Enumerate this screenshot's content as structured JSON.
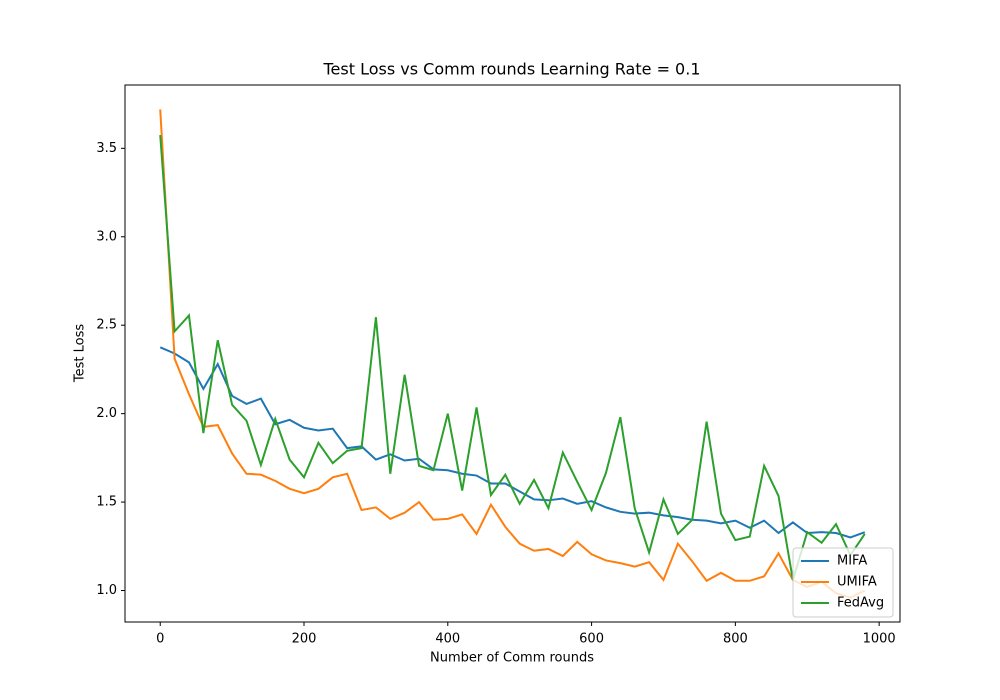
{
  "chart_data": {
    "type": "line",
    "title": "Test Loss vs Comm rounds Learning Rate = 0.1",
    "xlabel": "Number of Comm rounds",
    "ylabel": "Test Loss",
    "x": [
      0,
      20,
      40,
      60,
      80,
      100,
      120,
      140,
      160,
      180,
      200,
      220,
      240,
      260,
      280,
      300,
      320,
      340,
      360,
      380,
      400,
      420,
      440,
      460,
      480,
      500,
      520,
      540,
      560,
      580,
      600,
      620,
      640,
      660,
      680,
      700,
      720,
      740,
      760,
      780,
      800,
      820,
      840,
      860,
      880,
      900,
      920,
      940,
      960,
      980
    ],
    "series": [
      {
        "name": "MIFA",
        "color": "#1f77b4",
        "values": [
          2.375,
          2.34,
          2.29,
          2.14,
          2.28,
          2.1,
          2.055,
          2.085,
          1.94,
          1.965,
          1.92,
          1.905,
          1.915,
          1.805,
          1.815,
          1.74,
          1.77,
          1.735,
          1.745,
          1.685,
          1.68,
          1.66,
          1.65,
          1.605,
          1.605,
          1.56,
          1.515,
          1.51,
          1.52,
          1.49,
          1.505,
          1.47,
          1.445,
          1.435,
          1.44,
          1.425,
          1.415,
          1.4,
          1.395,
          1.38,
          1.395,
          1.355,
          1.395,
          1.325,
          1.385,
          1.325,
          1.33,
          1.325,
          1.3,
          1.33
        ]
      },
      {
        "name": "UMIFA",
        "color": "#ff7f0e",
        "values": [
          3.72,
          2.31,
          2.11,
          1.925,
          1.935,
          1.775,
          1.66,
          1.655,
          1.62,
          1.575,
          1.55,
          1.575,
          1.64,
          1.66,
          1.455,
          1.47,
          1.405,
          1.44,
          1.5,
          1.4,
          1.405,
          1.43,
          1.32,
          1.485,
          1.36,
          1.265,
          1.225,
          1.235,
          1.195,
          1.275,
          1.205,
          1.17,
          1.155,
          1.135,
          1.16,
          1.06,
          1.265,
          1.165,
          1.055,
          1.1,
          1.055,
          1.055,
          1.08,
          1.21,
          1.06,
          1.02,
          1.05,
          0.985,
          0.96,
          1.0
        ]
      },
      {
        "name": "FedAvg",
        "color": "#2ca02c",
        "values": [
          3.575,
          2.465,
          2.555,
          1.89,
          2.415,
          2.05,
          1.96,
          1.71,
          1.97,
          1.74,
          1.64,
          1.835,
          1.72,
          1.79,
          1.805,
          2.545,
          1.66,
          2.22,
          1.705,
          1.68,
          2.0,
          1.565,
          2.035,
          1.54,
          1.655,
          1.49,
          1.625,
          1.465,
          1.78,
          1.615,
          1.455,
          1.665,
          1.98,
          1.465,
          1.215,
          1.515,
          1.32,
          1.4,
          1.955,
          1.435,
          1.285,
          1.305,
          1.705,
          1.535,
          1.06,
          1.33,
          1.27,
          1.375,
          1.2,
          1.32
        ]
      }
    ],
    "xlim": [
      -49,
      1029
    ],
    "xticks": [
      0,
      200,
      400,
      600,
      800,
      1000
    ],
    "ylim": [
      0.822,
      3.858
    ],
    "yticks": [
      {
        "value": 1.0,
        "label": "1.0"
      },
      1.5,
      {
        "value": 2.0,
        "label": "2.0"
      },
      2.5,
      {
        "value": 3.0,
        "label": "3.0"
      },
      3.5
    ],
    "legend": "lower right",
    "grid": false
  }
}
